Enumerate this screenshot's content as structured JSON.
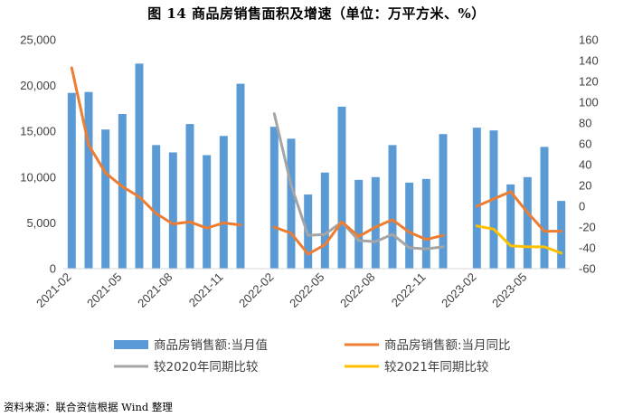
{
  "title": "图 14 商品房销售面积及增速（单位：万平方米、%）",
  "source": "资料来源：联合资信根据 Wind 整理",
  "colors": {
    "bar": "#5B9BD5",
    "yoy": "#ED7D31",
    "vs2020": "#A5A5A5",
    "vs2021": "#FFC000",
    "axis": "#D9D9D9"
  },
  "chart_data": {
    "type": "bar",
    "categories": [
      "2021-02",
      "2021-03",
      "2021-04",
      "2021-05",
      "2021-06",
      "2021-07",
      "2021-08",
      "2021-09",
      "2021-10",
      "2021-11",
      "2021-12",
      "2022-01",
      "2022-02",
      "2022-03",
      "2022-04",
      "2022-05",
      "2022-06",
      "2022-07",
      "2022-08",
      "2022-09",
      "2022-10",
      "2022-11",
      "2022-12",
      "2023-01",
      "2023-02",
      "2023-03",
      "2023-04",
      "2023-05",
      "2023-06",
      "2023-07"
    ],
    "x_tick_labels": [
      "2021-02",
      "2021-05",
      "2021-08",
      "2021-11",
      "2022-02",
      "2022-05",
      "2022-08",
      "2022-11",
      "2023-02",
      "2023-05"
    ],
    "y_left": {
      "min": 0,
      "max": 25000,
      "step": 5000,
      "tick_labels": [
        "0",
        "5,000",
        "10,000",
        "15,000",
        "20,000",
        "25,000"
      ]
    },
    "y_right": {
      "min": -60,
      "max": 160,
      "step": 20,
      "tick_labels": [
        "-60",
        "-40",
        "-20",
        "0",
        "20",
        "40",
        "60",
        "80",
        "100",
        "120",
        "140",
        "160"
      ]
    },
    "series": [
      {
        "name": "商品房销售额:当月值",
        "type": "bar",
        "axis": "left",
        "values": [
          19200,
          19300,
          15200,
          16900,
          22400,
          13500,
          12700,
          15800,
          12400,
          14500,
          20200,
          null,
          15500,
          14200,
          8100,
          10500,
          17700,
          9700,
          10000,
          13500,
          9400,
          9800,
          14700,
          null,
          15400,
          15100,
          9200,
          10000,
          13300,
          7400
        ]
      },
      {
        "name": "商品房销售额:当月同比",
        "type": "line",
        "axis": "right",
        "values": [
          133,
          59,
          32,
          19,
          9,
          -7,
          -17,
          -15,
          -21,
          -16,
          -18,
          null,
          -20,
          -26,
          -46,
          -37,
          -15,
          -29,
          -20,
          -13,
          -25,
          -32,
          -28,
          null,
          0,
          7,
          14,
          -6,
          -24,
          -24
        ]
      },
      {
        "name": "较2020年同期比较",
        "type": "line",
        "axis": "right",
        "values": [
          null,
          null,
          null,
          null,
          null,
          null,
          null,
          null,
          null,
          null,
          null,
          null,
          89,
          20,
          -28,
          -27,
          -15,
          -33,
          -34,
          -27,
          -40,
          -41,
          -39,
          null,
          null,
          null,
          null,
          null,
          null,
          null
        ]
      },
      {
        "name": "较2021年同期比较",
        "type": "line",
        "axis": "right",
        "values": [
          null,
          null,
          null,
          null,
          null,
          null,
          null,
          null,
          null,
          null,
          null,
          null,
          null,
          null,
          null,
          null,
          null,
          null,
          null,
          null,
          null,
          null,
          null,
          null,
          -19,
          -22,
          -38,
          -39,
          -39,
          -45
        ]
      }
    ],
    "legend_position": "bottom",
    "grid": false
  }
}
